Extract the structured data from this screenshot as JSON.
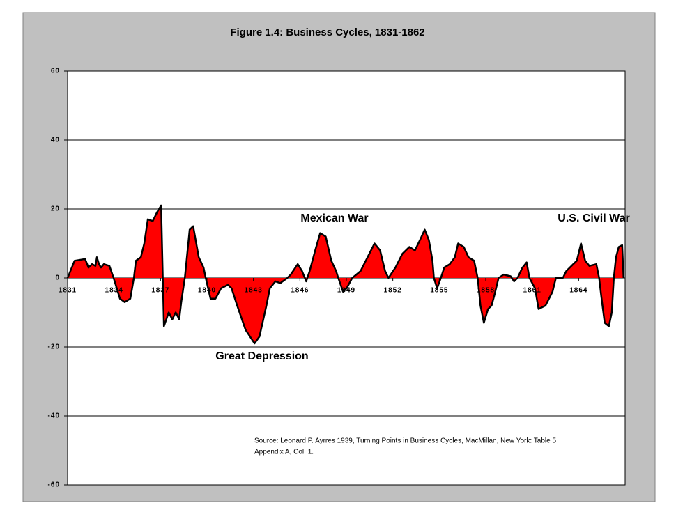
{
  "chart_data": {
    "type": "area",
    "title": "Figure 1.4: Business Cycles, 1831-1862",
    "annotations": [
      "Mexican War",
      "U.S. Civil War",
      "Great Depression"
    ],
    "source": [
      "Source: Leonard P. Ayrres 1939, Turning Points in Business Cycles, MacMillan, New York: Table 5",
      "Appendix A, Col. 1."
    ],
    "x": [
      1831.0,
      1831.45,
      1832.13,
      1832.35,
      1832.58,
      1832.8,
      1832.89,
      1833.03,
      1833.16,
      1833.34,
      1833.7,
      1833.97,
      1834.38,
      1834.69,
      1835.05,
      1835.28,
      1835.41,
      1835.73,
      1835.95,
      1836.18,
      1836.5,
      1836.77,
      1837.04,
      1837.22,
      1837.53,
      1837.76,
      1837.98,
      1838.21,
      1838.34,
      1838.57,
      1838.88,
      1839.11,
      1839.47,
      1839.78,
      1839.92,
      1840.23,
      1840.55,
      1840.91,
      1841.36,
      1841.59,
      1841.95,
      1842.49,
      1843.07,
      1843.39,
      1843.84,
      1844.06,
      1844.42,
      1844.74,
      1845.19,
      1845.41,
      1845.86,
      1846.14,
      1846.32,
      1846.41,
      1846.63,
      1846.99,
      1847.31,
      1847.67,
      1848.03,
      1848.34,
      1848.48,
      1848.79,
      1849.02,
      1849.38,
      1849.92,
      1850.37,
      1850.82,
      1851.18,
      1851.5,
      1851.72,
      1852.17,
      1852.62,
      1853.07,
      1853.43,
      1853.75,
      1854.06,
      1854.33,
      1854.56,
      1854.65,
      1854.86,
      1855.1,
      1855.32,
      1855.68,
      1856.0,
      1856.22,
      1856.58,
      1856.89,
      1857.25,
      1857.48,
      1857.66,
      1857.88,
      1858.15,
      1858.38,
      1858.56,
      1858.83,
      1859.15,
      1859.6,
      1859.83,
      1860.05,
      1860.37,
      1860.64,
      1860.82,
      1861.18,
      1861.41,
      1861.86,
      1862.31,
      1862.53,
      1862.98,
      1863.2,
      1863.65,
      1863.88,
      1864.15,
      1864.42,
      1864.69,
      1865.14,
      1865.32,
      1865.45,
      1865.68,
      1865.95,
      1866.14,
      1866.27,
      1866.41,
      1866.59,
      1866.81,
      1866.9
    ],
    "values": [
      0,
      5,
      5.5,
      3,
      4,
      3.5,
      6,
      4,
      3,
      4,
      3.5,
      0,
      -6,
      -7,
      -6,
      0,
      5,
      6,
      10,
      17,
      16.5,
      19,
      21,
      -14,
      -10,
      -12,
      -10,
      -12,
      -7,
      0,
      14,
      15,
      6,
      3,
      0,
      -6,
      -6,
      -3,
      -2,
      -3,
      -8,
      -15,
      -19,
      -17,
      -8,
      -3,
      -1,
      -1.5,
      0,
      1,
      4,
      2,
      0,
      -1,
      2,
      8,
      13,
      12,
      5,
      2,
      0,
      -4,
      -3,
      0,
      2,
      6,
      10,
      8,
      2,
      0,
      3,
      7,
      9,
      8,
      11,
      14,
      11,
      5,
      0,
      -3,
      0,
      3,
      4,
      6,
      10,
      9,
      6,
      5,
      0,
      -8,
      -13,
      -9,
      -8,
      -5,
      0,
      1,
      0.5,
      -1,
      0,
      3,
      4.5,
      0,
      -3,
      -9,
      -8,
      -4,
      0,
      0,
      2,
      4,
      5,
      10,
      5,
      3.5,
      4,
      0,
      -5,
      -13,
      -14,
      -10,
      0,
      6,
      9,
      9.5,
      0
    ],
    "color": "#ff0000",
    "line_color": "#000000",
    "xlim": [
      1831,
      1867
    ],
    "xticks": [
      1831,
      1834,
      1837,
      1840,
      1843,
      1846,
      1849,
      1852,
      1855,
      1858,
      1861,
      1864
    ],
    "ylim": [
      -60,
      60
    ],
    "yticks": [
      -60,
      -40,
      -20,
      0,
      20,
      40,
      60
    ],
    "grid": true
  }
}
